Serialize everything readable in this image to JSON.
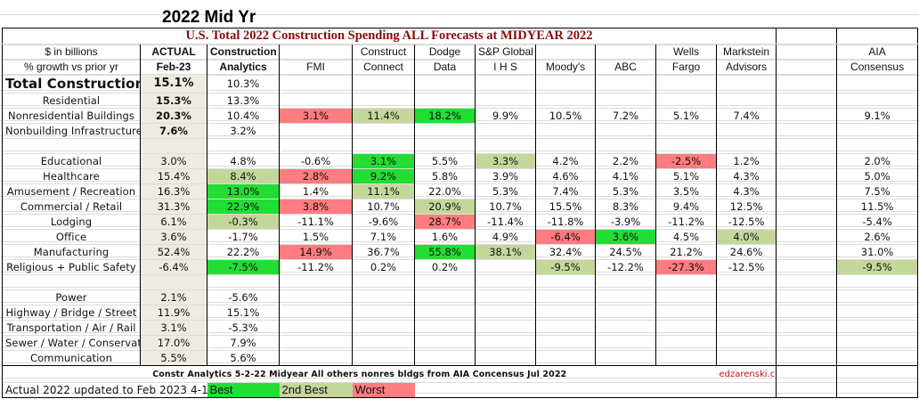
{
  "header": {
    "title": "2022 Mid Yr",
    "banner": "U.S. Total 2022 Construction Spending ALL Forecasts at MIDYEAR 2022"
  },
  "columns": {
    "label": [
      "$ in billions",
      "% growth vs prior yr"
    ],
    "actual": [
      "ACTUAL",
      "Feb-23"
    ],
    "ca": [
      "Construction",
      "Analytics"
    ],
    "fmi": [
      "",
      "FMI"
    ],
    "cc": [
      "Construct",
      "Connect"
    ],
    "dodge": [
      "Dodge",
      "Data"
    ],
    "sp": [
      "S&P Global",
      "I H S"
    ],
    "moodys": [
      "",
      "Moody's"
    ],
    "abc": [
      "",
      "ABC"
    ],
    "wells": [
      "Wells",
      "Fargo"
    ],
    "markstein": [
      "Markstein",
      "Advisors"
    ],
    "blank": [
      "",
      ""
    ],
    "aia": [
      "AIA",
      "Consensus"
    ]
  },
  "summary_rows": [
    {
      "label": "Total Construction",
      "actual": "15.1%",
      "ca": "10.3%",
      "fmi": "",
      "cc": "",
      "dodge": "",
      "sp": "",
      "moodys": "",
      "abc": "",
      "wells": "",
      "markstein": "",
      "aia": ""
    },
    {
      "label": "Residential",
      "actual": "15.3%",
      "ca": "13.3%",
      "fmi": "",
      "cc": "",
      "dodge": "",
      "sp": "",
      "moodys": "",
      "abc": "",
      "wells": "",
      "markstein": "",
      "aia": ""
    },
    {
      "label": "Nonresidential Buildings",
      "actual": "20.3%",
      "ca": "10.4%",
      "fmi": "3.1%",
      "cc": "11.4%",
      "dodge": "18.2%",
      "sp": "9.9%",
      "moodys": "10.5%",
      "abc": "7.2%",
      "wells": "5.1%",
      "markstein": "7.4%",
      "aia": "9.1%"
    },
    {
      "label": "Nonbuilding Infrastructure",
      "actual": "7.6%",
      "ca": "3.2%",
      "fmi": "",
      "cc": "",
      "dodge": "",
      "sp": "",
      "moodys": "",
      "abc": "",
      "wells": "",
      "markstein": "",
      "aia": ""
    }
  ],
  "nonres_rows": [
    {
      "label": "Educational",
      "actual": "3.0%",
      "ca": "4.8%",
      "fmi": "-0.6%",
      "cc": "3.1%",
      "dodge": "5.5%",
      "sp": "3.3%",
      "moodys": "4.2%",
      "abc": "2.2%",
      "wells": "-2.5%",
      "markstein": "1.2%",
      "aia": "2.0%"
    },
    {
      "label": "Healthcare",
      "actual": "15.4%",
      "ca": "8.4%",
      "fmi": "2.8%",
      "cc": "9.2%",
      "dodge": "5.8%",
      "sp": "3.9%",
      "moodys": "4.6%",
      "abc": "4.1%",
      "wells": "5.1%",
      "markstein": "4.3%",
      "aia": "5.0%"
    },
    {
      "label": "Amusement / Recreation",
      "actual": "16.3%",
      "ca": "13.0%",
      "fmi": "1.4%",
      "cc": "11.1%",
      "dodge": "22.0%",
      "sp": "5.3%",
      "moodys": "7.4%",
      "abc": "5.3%",
      "wells": "3.5%",
      "markstein": "4.3%",
      "aia": "7.5%"
    },
    {
      "label": "Commercial / Retail",
      "actual": "31.3%",
      "ca": "22.9%",
      "fmi": "3.8%",
      "cc": "10.7%",
      "dodge": "20.9%",
      "sp": "10.7%",
      "moodys": "15.5%",
      "abc": "8.3%",
      "wells": "9.4%",
      "markstein": "12.5%",
      "aia": "11.5%"
    },
    {
      "label": "Lodging",
      "actual": "6.1%",
      "ca": "-0.3%",
      "fmi": "-11.1%",
      "cc": "-9.6%",
      "dodge": "28.7%",
      "sp": "-11.4%",
      "moodys": "-11.8%",
      "abc": "-3.9%",
      "wells": "-11.2%",
      "markstein": "-12.5%",
      "aia": "-5.4%"
    },
    {
      "label": "Office",
      "actual": "3.6%",
      "ca": "-1.7%",
      "fmi": "1.5%",
      "cc": "7.1%",
      "dodge": "1.6%",
      "sp": "4.9%",
      "moodys": "-6.4%",
      "abc": "3.6%",
      "wells": "4.5%",
      "markstein": "4.0%",
      "aia": "2.6%"
    },
    {
      "label": "Manufacturing",
      "actual": "52.4%",
      "ca": "22.2%",
      "fmi": "14.9%",
      "cc": "36.7%",
      "dodge": "55.8%",
      "sp": "38.1%",
      "moodys": "32.4%",
      "abc": "24.5%",
      "wells": "21.2%",
      "markstein": "24.6%",
      "aia": "31.0%"
    },
    {
      "label": "Religious + Public Safety",
      "actual": "-6.4%",
      "ca": "-7.5%",
      "fmi": "-11.2%",
      "cc": "0.2%",
      "dodge": "0.2%",
      "sp": "",
      "moodys": "-9.5%",
      "abc": "-12.2%",
      "wells": "-27.3%",
      "markstein": "-12.5%",
      "aia": "-9.5%"
    }
  ],
  "infra_rows": [
    {
      "label": "Power",
      "actual": "2.1%",
      "ca": "-5.6%"
    },
    {
      "label": "Highway / Bridge / Street",
      "actual": "11.9%",
      "ca": "15.1%"
    },
    {
      "label": "Transportation / Air / Rail",
      "actual": "3.1%",
      "ca": "-5.3%"
    },
    {
      "label": "Sewer / Water / Conservatio",
      "actual": "17.0%",
      "ca": "7.9%"
    },
    {
      "label": "Communication",
      "actual": "5.5%",
      "ca": "5.6%"
    }
  ],
  "highlights": {
    "summary": {
      "2": {
        "fmi": "worst",
        "cc": "second",
        "dodge": "best"
      }
    },
    "nonres": {
      "0": {
        "cc": "best",
        "sp": "second",
        "wells": "worst"
      },
      "1": {
        "ca": "second",
        "fmi": "worst",
        "cc": "best"
      },
      "2": {
        "ca": "best",
        "cc": "second"
      },
      "3": {
        "ca": "best",
        "fmi": "worst",
        "dodge": "second"
      },
      "4": {
        "ca": "second",
        "dodge": "worst"
      },
      "5": {
        "moodys": "worst",
        "abc": "best",
        "markstein": "second"
      },
      "6": {
        "fmi": "worst",
        "dodge": "best",
        "sp": "second"
      },
      "7": {
        "ca": "best",
        "moodys": "second",
        "wells": "worst",
        "aia": "second"
      }
    }
  },
  "footer": {
    "note": "Constr Analytics 5-2-22 Midyear All others nonres bldgs from AIA Concensus Jul 2022",
    "actual_note": "Actual 2022 updated to Feb 2023  4-1-23",
    "legend": {
      "best": "Best",
      "second": "2nd Best",
      "worst": "Worst"
    },
    "site": "edzarenski.com"
  },
  "colors": {
    "best": "#22dd33",
    "second": "#c4d79b",
    "worst": "#ff7c80",
    "actual_bg": "#eeebe2",
    "banner": "#8b0a0a",
    "site": "#c0141c"
  }
}
